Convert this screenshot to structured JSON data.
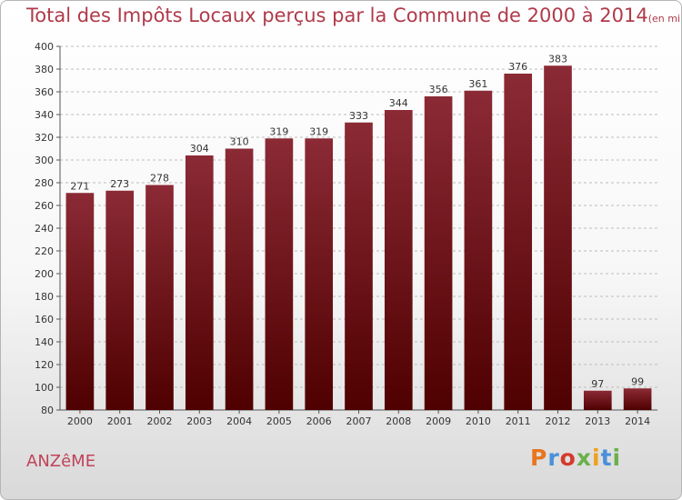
{
  "header": {
    "title": "Total des Impôts Locaux perçus par la Commune de 2000 à 2014",
    "unit": "(en milliers d'€)"
  },
  "footer": {
    "commune": "ANZêME",
    "brand": "Proxiti",
    "brand_colors": [
      "#e8761f",
      "#4a90d9",
      "#d43a2a",
      "#6ab04c",
      "#f0a01e",
      "#4a90d9",
      "#6ab04c"
    ]
  },
  "colors": {
    "bar_top": "#8b2a35",
    "bar_bottom": "#4f0000",
    "title": "#b03a4a",
    "grid": "#bdbdbd"
  },
  "chart_data": {
    "type": "bar",
    "title": "Total des Impôts Locaux perçus par la Commune de 2000 à 2014",
    "categories": [
      "2000",
      "2001",
      "2002",
      "2003",
      "2004",
      "2005",
      "2006",
      "2007",
      "2008",
      "2009",
      "2010",
      "2011",
      "2012",
      "2013",
      "2014"
    ],
    "values": [
      271,
      273,
      278,
      304,
      310,
      319,
      319,
      333,
      344,
      356,
      361,
      376,
      383,
      97,
      99
    ],
    "ylim": [
      80,
      400
    ],
    "yticks": [
      80,
      100,
      120,
      140,
      160,
      180,
      200,
      220,
      240,
      260,
      280,
      300,
      320,
      340,
      360,
      380,
      400
    ],
    "grid": true,
    "xlabel": "",
    "ylabel": ""
  }
}
